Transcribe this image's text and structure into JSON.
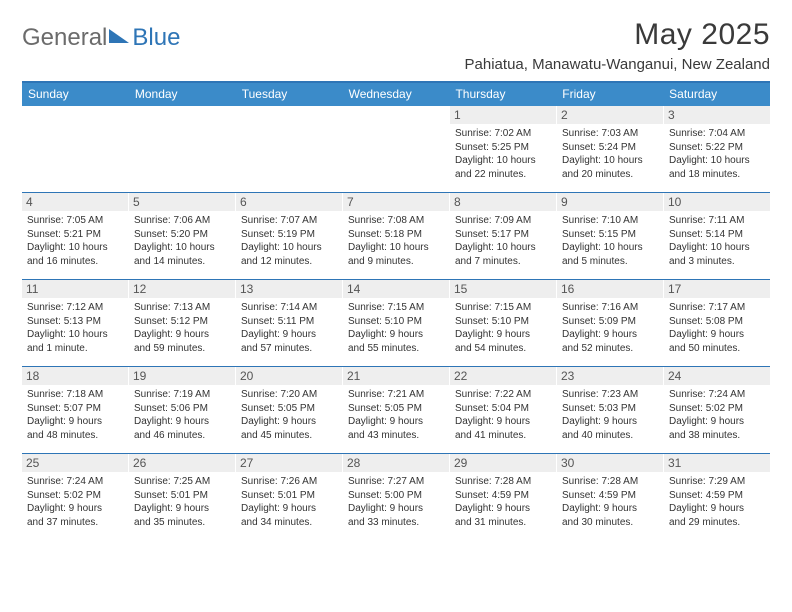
{
  "brand": {
    "part1": "General",
    "part2": "Blue"
  },
  "title": "May 2025",
  "location": "Pahiatua, Manawatu-Wanganui, New Zealand",
  "colors": {
    "accent": "#2e75b6",
    "header_bg": "#3b8bc9",
    "daynum_bg": "#eeeeee",
    "text": "#333333"
  },
  "dow": [
    "Sunday",
    "Monday",
    "Tuesday",
    "Wednesday",
    "Thursday",
    "Friday",
    "Saturday"
  ],
  "weeks": [
    [
      null,
      null,
      null,
      null,
      {
        "n": "1",
        "sr": "Sunrise: 7:02 AM",
        "ss": "Sunset: 5:25 PM",
        "d1": "Daylight: 10 hours",
        "d2": "and 22 minutes."
      },
      {
        "n": "2",
        "sr": "Sunrise: 7:03 AM",
        "ss": "Sunset: 5:24 PM",
        "d1": "Daylight: 10 hours",
        "d2": "and 20 minutes."
      },
      {
        "n": "3",
        "sr": "Sunrise: 7:04 AM",
        "ss": "Sunset: 5:22 PM",
        "d1": "Daylight: 10 hours",
        "d2": "and 18 minutes."
      }
    ],
    [
      {
        "n": "4",
        "sr": "Sunrise: 7:05 AM",
        "ss": "Sunset: 5:21 PM",
        "d1": "Daylight: 10 hours",
        "d2": "and 16 minutes."
      },
      {
        "n": "5",
        "sr": "Sunrise: 7:06 AM",
        "ss": "Sunset: 5:20 PM",
        "d1": "Daylight: 10 hours",
        "d2": "and 14 minutes."
      },
      {
        "n": "6",
        "sr": "Sunrise: 7:07 AM",
        "ss": "Sunset: 5:19 PM",
        "d1": "Daylight: 10 hours",
        "d2": "and 12 minutes."
      },
      {
        "n": "7",
        "sr": "Sunrise: 7:08 AM",
        "ss": "Sunset: 5:18 PM",
        "d1": "Daylight: 10 hours",
        "d2": "and 9 minutes."
      },
      {
        "n": "8",
        "sr": "Sunrise: 7:09 AM",
        "ss": "Sunset: 5:17 PM",
        "d1": "Daylight: 10 hours",
        "d2": "and 7 minutes."
      },
      {
        "n": "9",
        "sr": "Sunrise: 7:10 AM",
        "ss": "Sunset: 5:15 PM",
        "d1": "Daylight: 10 hours",
        "d2": "and 5 minutes."
      },
      {
        "n": "10",
        "sr": "Sunrise: 7:11 AM",
        "ss": "Sunset: 5:14 PM",
        "d1": "Daylight: 10 hours",
        "d2": "and 3 minutes."
      }
    ],
    [
      {
        "n": "11",
        "sr": "Sunrise: 7:12 AM",
        "ss": "Sunset: 5:13 PM",
        "d1": "Daylight: 10 hours",
        "d2": "and 1 minute."
      },
      {
        "n": "12",
        "sr": "Sunrise: 7:13 AM",
        "ss": "Sunset: 5:12 PM",
        "d1": "Daylight: 9 hours",
        "d2": "and 59 minutes."
      },
      {
        "n": "13",
        "sr": "Sunrise: 7:14 AM",
        "ss": "Sunset: 5:11 PM",
        "d1": "Daylight: 9 hours",
        "d2": "and 57 minutes."
      },
      {
        "n": "14",
        "sr": "Sunrise: 7:15 AM",
        "ss": "Sunset: 5:10 PM",
        "d1": "Daylight: 9 hours",
        "d2": "and 55 minutes."
      },
      {
        "n": "15",
        "sr": "Sunrise: 7:15 AM",
        "ss": "Sunset: 5:10 PM",
        "d1": "Daylight: 9 hours",
        "d2": "and 54 minutes."
      },
      {
        "n": "16",
        "sr": "Sunrise: 7:16 AM",
        "ss": "Sunset: 5:09 PM",
        "d1": "Daylight: 9 hours",
        "d2": "and 52 minutes."
      },
      {
        "n": "17",
        "sr": "Sunrise: 7:17 AM",
        "ss": "Sunset: 5:08 PM",
        "d1": "Daylight: 9 hours",
        "d2": "and 50 minutes."
      }
    ],
    [
      {
        "n": "18",
        "sr": "Sunrise: 7:18 AM",
        "ss": "Sunset: 5:07 PM",
        "d1": "Daylight: 9 hours",
        "d2": "and 48 minutes."
      },
      {
        "n": "19",
        "sr": "Sunrise: 7:19 AM",
        "ss": "Sunset: 5:06 PM",
        "d1": "Daylight: 9 hours",
        "d2": "and 46 minutes."
      },
      {
        "n": "20",
        "sr": "Sunrise: 7:20 AM",
        "ss": "Sunset: 5:05 PM",
        "d1": "Daylight: 9 hours",
        "d2": "and 45 minutes."
      },
      {
        "n": "21",
        "sr": "Sunrise: 7:21 AM",
        "ss": "Sunset: 5:05 PM",
        "d1": "Daylight: 9 hours",
        "d2": "and 43 minutes."
      },
      {
        "n": "22",
        "sr": "Sunrise: 7:22 AM",
        "ss": "Sunset: 5:04 PM",
        "d1": "Daylight: 9 hours",
        "d2": "and 41 minutes."
      },
      {
        "n": "23",
        "sr": "Sunrise: 7:23 AM",
        "ss": "Sunset: 5:03 PM",
        "d1": "Daylight: 9 hours",
        "d2": "and 40 minutes."
      },
      {
        "n": "24",
        "sr": "Sunrise: 7:24 AM",
        "ss": "Sunset: 5:02 PM",
        "d1": "Daylight: 9 hours",
        "d2": "and 38 minutes."
      }
    ],
    [
      {
        "n": "25",
        "sr": "Sunrise: 7:24 AM",
        "ss": "Sunset: 5:02 PM",
        "d1": "Daylight: 9 hours",
        "d2": "and 37 minutes."
      },
      {
        "n": "26",
        "sr": "Sunrise: 7:25 AM",
        "ss": "Sunset: 5:01 PM",
        "d1": "Daylight: 9 hours",
        "d2": "and 35 minutes."
      },
      {
        "n": "27",
        "sr": "Sunrise: 7:26 AM",
        "ss": "Sunset: 5:01 PM",
        "d1": "Daylight: 9 hours",
        "d2": "and 34 minutes."
      },
      {
        "n": "28",
        "sr": "Sunrise: 7:27 AM",
        "ss": "Sunset: 5:00 PM",
        "d1": "Daylight: 9 hours",
        "d2": "and 33 minutes."
      },
      {
        "n": "29",
        "sr": "Sunrise: 7:28 AM",
        "ss": "Sunset: 4:59 PM",
        "d1": "Daylight: 9 hours",
        "d2": "and 31 minutes."
      },
      {
        "n": "30",
        "sr": "Sunrise: 7:28 AM",
        "ss": "Sunset: 4:59 PM",
        "d1": "Daylight: 9 hours",
        "d2": "and 30 minutes."
      },
      {
        "n": "31",
        "sr": "Sunrise: 7:29 AM",
        "ss": "Sunset: 4:59 PM",
        "d1": "Daylight: 9 hours",
        "d2": "and 29 minutes."
      }
    ]
  ]
}
